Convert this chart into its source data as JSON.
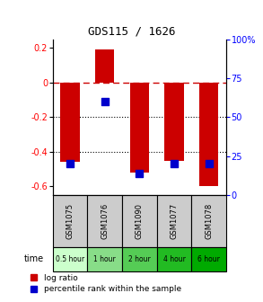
{
  "title": "GDS115 / 1626",
  "samples": [
    "GSM1075",
    "GSM1076",
    "GSM1090",
    "GSM1077",
    "GSM1078"
  ],
  "time_labels": [
    "0.5 hour",
    "1 hour",
    "2 hour",
    "4 hour",
    "6 hour"
  ],
  "log_ratios": [
    -0.46,
    0.19,
    -0.52,
    -0.455,
    -0.6
  ],
  "percentile_ranks": [
    20,
    60,
    14,
    20,
    20
  ],
  "ylim": [
    -0.65,
    0.25
  ],
  "right_ylim": [
    0,
    100
  ],
  "right_yticks": [
    0,
    25,
    50,
    75,
    100
  ],
  "right_yticklabels": [
    "0",
    "25",
    "50",
    "75",
    "100%"
  ],
  "left_yticks": [
    -0.6,
    -0.4,
    -0.2,
    0.0,
    0.2
  ],
  "left_yticklabels": [
    "-0.6",
    "-0.4",
    "-0.2",
    "0",
    "0.2"
  ],
  "bar_color": "#cc0000",
  "dot_color": "#0000cc",
  "zero_line_color": "#cc0000",
  "grid_color": "#000000",
  "time_colors": [
    "#ccffcc",
    "#88dd88",
    "#55cc55",
    "#22bb22",
    "#00aa00"
  ],
  "bar_width": 0.55,
  "dot_size": 30,
  "bg_color": "#ffffff",
  "label_log_ratio": "log ratio",
  "label_percentile": "percentile rank within the sample"
}
